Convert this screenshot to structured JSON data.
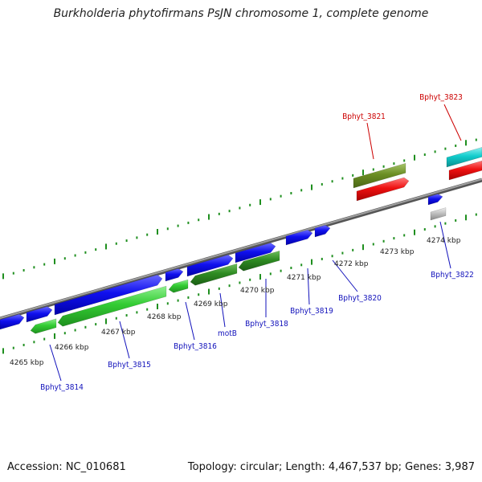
{
  "title": "Burkholderia phytofirmans PsJN chromosome 1, complete genome",
  "footer": {
    "accession": "Accession: NC_010681",
    "summary": "Topology: circular; Length: 4,467,537 bp; Genes: 3,987"
  },
  "colors": {
    "forward_cds": "#1010ee",
    "reverse_cds_light": "#33cc33",
    "reverse_cds_dark": "#2e8b22",
    "olive": "#6b8e23",
    "red": "#ee1111",
    "cyan": "#11cccc",
    "grey": "#bbbbbb",
    "ticks": "#1f8f1f",
    "backbone": "#808080",
    "label_blue": "#1111bb",
    "label_red": "#cc0000"
  },
  "kbp_labels": [
    "4265 kbp",
    "4266 kbp",
    "4267 kbp",
    "4268 kbp",
    "4269 kbp",
    "4270 kbp",
    "4271 kbp",
    "4272 kbp",
    "4273 kbp",
    "4274 kbp"
  ],
  "gene_labels": [
    {
      "name": "Bphyt_3814",
      "color": "blue"
    },
    {
      "name": "Bphyt_3815",
      "color": "blue"
    },
    {
      "name": "Bphyt_3816",
      "color": "blue"
    },
    {
      "name": "motB",
      "color": "blue"
    },
    {
      "name": "Bphyt_3818",
      "color": "blue"
    },
    {
      "name": "Bphyt_3819",
      "color": "blue"
    },
    {
      "name": "Bphyt_3820",
      "color": "blue"
    },
    {
      "name": "Bphyt_3821",
      "color": "red"
    },
    {
      "name": "Bphyt_3822",
      "color": "blue"
    },
    {
      "name": "Bphyt_3823",
      "color": "red"
    }
  ]
}
